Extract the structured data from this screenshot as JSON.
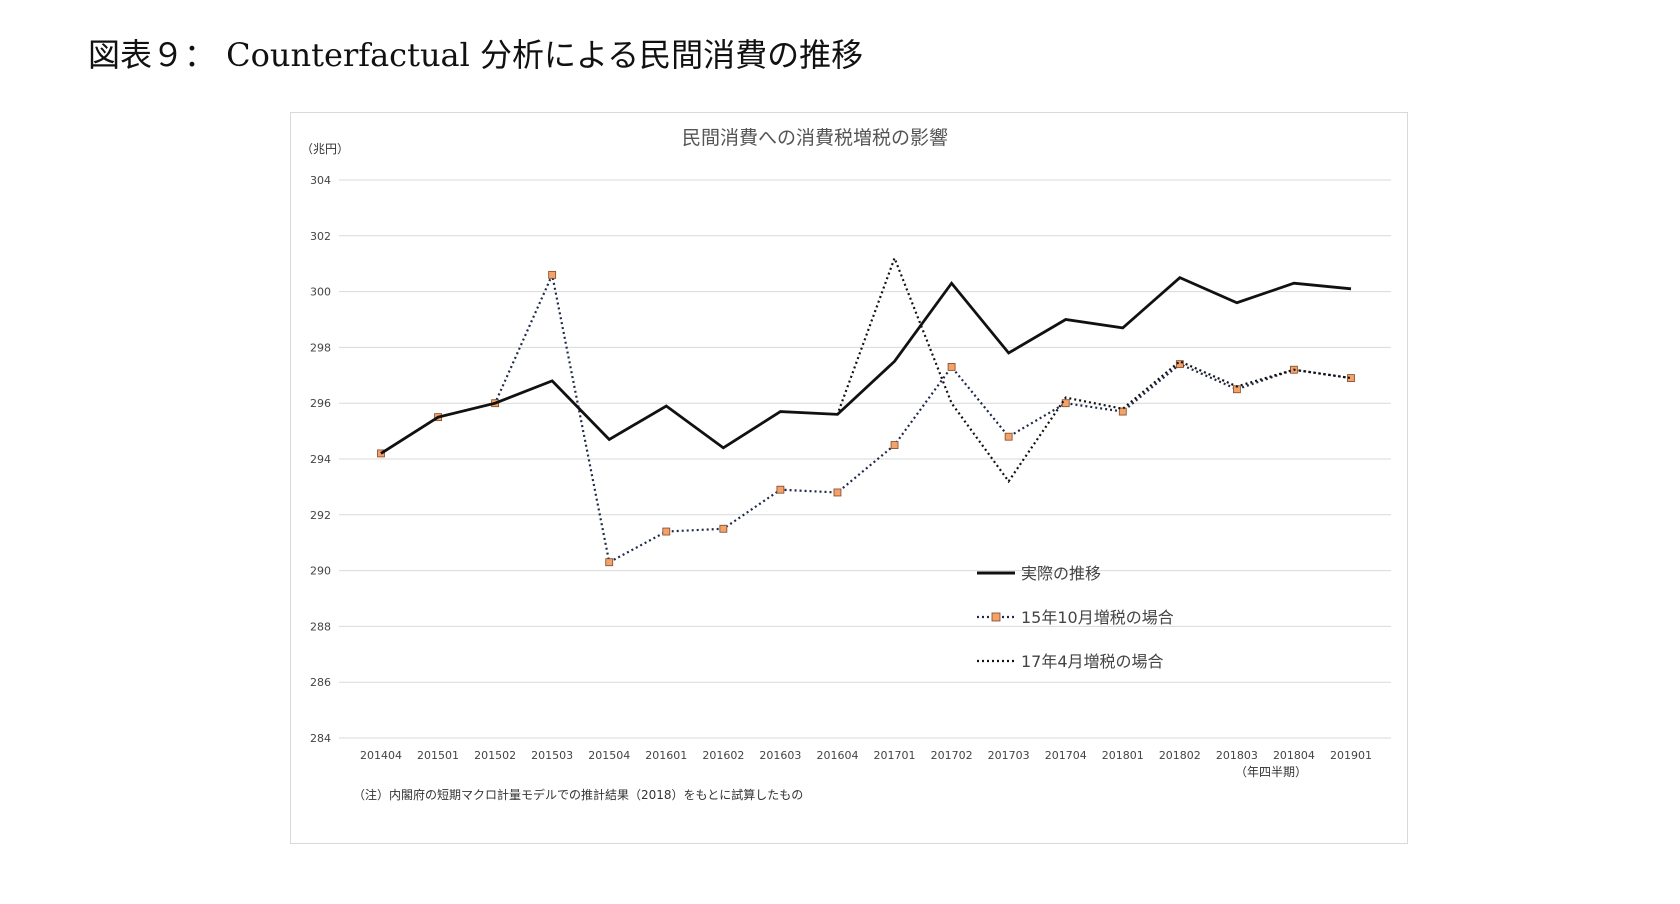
{
  "figure_title": "図表９： Counterfactual 分析による民間消費の推移",
  "chart_data": {
    "type": "line",
    "title": "民間消費への消費税増税の影響",
    "ylabel": "（兆円）",
    "xlabel": "（年四半期）",
    "note": "（注）内閣府の短期マクロ計量モデルでの推計結果（2018）をもとに試算したもの",
    "ylim": [
      284,
      304
    ],
    "yticks": [
      "284",
      "286",
      "288",
      "290",
      "292",
      "294",
      "296",
      "298",
      "300",
      "302",
      "304"
    ],
    "grid": true,
    "legend_position": "lower-right",
    "categories": [
      "201404",
      "201501",
      "201502",
      "201503",
      "201504",
      "201601",
      "201602",
      "201603",
      "201604",
      "201701",
      "201702",
      "201703",
      "201704",
      "201801",
      "201802",
      "201803",
      "201804",
      "201901"
    ],
    "series": [
      {
        "name": "実際の推移",
        "style": "solid",
        "color": "#111111",
        "values": [
          294.2,
          295.5,
          296.0,
          296.8,
          294.7,
          295.9,
          294.4,
          295.7,
          295.6,
          297.5,
          300.3,
          297.8,
          299.0,
          298.7,
          300.5,
          299.6,
          300.3,
          300.1
        ]
      },
      {
        "name": "15年10月増税の場合",
        "style": "dotted-marker",
        "color": "#1f2a4a",
        "marker_color": "#f4a26a",
        "values": [
          294.2,
          295.5,
          296.0,
          300.6,
          290.3,
          291.4,
          291.5,
          292.9,
          292.8,
          294.5,
          297.3,
          294.8,
          296.0,
          295.7,
          297.4,
          296.5,
          297.2,
          296.9
        ]
      },
      {
        "name": "17年4月増税の場合",
        "style": "dotted",
        "color": "#111111",
        "values": [
          294.2,
          295.5,
          296.0,
          296.8,
          294.7,
          295.9,
          294.4,
          295.7,
          295.6,
          301.2,
          296.0,
          293.2,
          296.2,
          295.8,
          297.5,
          296.6,
          297.2,
          296.9
        ]
      }
    ]
  }
}
